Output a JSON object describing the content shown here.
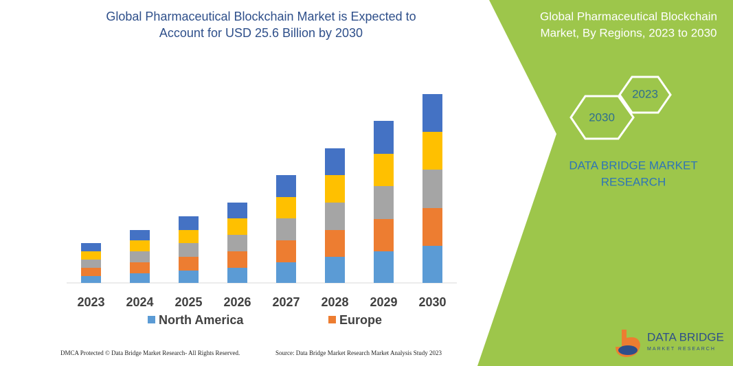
{
  "chart_data": {
    "type": "stacked-bar",
    "title": [
      "Global Pharmaceutical Blockchain Market is Expected to",
      "Account for USD 25.6 Billion by 2030"
    ],
    "categories": [
      "2023",
      "2024",
      "2025",
      "2026",
      "2027",
      "2028",
      "2029",
      "2030"
    ],
    "ylim": [
      0,
      300
    ],
    "series": [
      {
        "name": "North America",
        "color": "#5b9bd5",
        "values": [
          10,
          14,
          18,
          22,
          30,
          38,
          46,
          54
        ]
      },
      {
        "name": "Europe",
        "color": "#ed7d31",
        "values": [
          12,
          16,
          20,
          24,
          32,
          39,
          47,
          55
        ]
      },
      {
        "color": "#a5a5a5",
        "values": [
          12,
          16,
          20,
          24,
          32,
          40,
          48,
          56
        ]
      },
      {
        "color": "#ffc000",
        "values": [
          12,
          16,
          19,
          24,
          31,
          40,
          47,
          55
        ]
      },
      {
        "color": "#4472c4",
        "values": [
          12,
          15,
          20,
          23,
          32,
          39,
          48,
          55
        ]
      }
    ]
  },
  "side_panel": {
    "title": [
      "Global Pharmaceutical Blockchain",
      "Market, By Regions, 2023 to 2030"
    ],
    "hexagons": [
      "2030",
      "2023"
    ],
    "brand": [
      "DATA BRIDGE MARKET",
      "RESEARCH"
    ]
  },
  "logo": {
    "name": "DATA BRIDGE",
    "tagline": "MARKET RESEARCH"
  },
  "footer": {
    "left": "DMCA Protected © Data Bridge Market Research-  All Rights Reserved.",
    "right": "Source: Data Bridge Market Research  Market Analysis Study 2023"
  }
}
